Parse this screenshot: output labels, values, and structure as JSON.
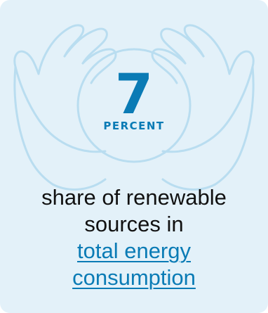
{
  "stat": {
    "value": "7",
    "unit": "PERCENT"
  },
  "description": {
    "line1": "share of renewable",
    "line2": "sources in",
    "link_line1": "total energy",
    "link_line2": "consumption"
  },
  "colors": {
    "card_background": "#e3f1f9",
    "accent": "#0a7bb5",
    "illustration_stroke": "#b9ddf0",
    "text": "#111111"
  },
  "icons": {
    "illustration": "hands-holding-globe-icon"
  }
}
